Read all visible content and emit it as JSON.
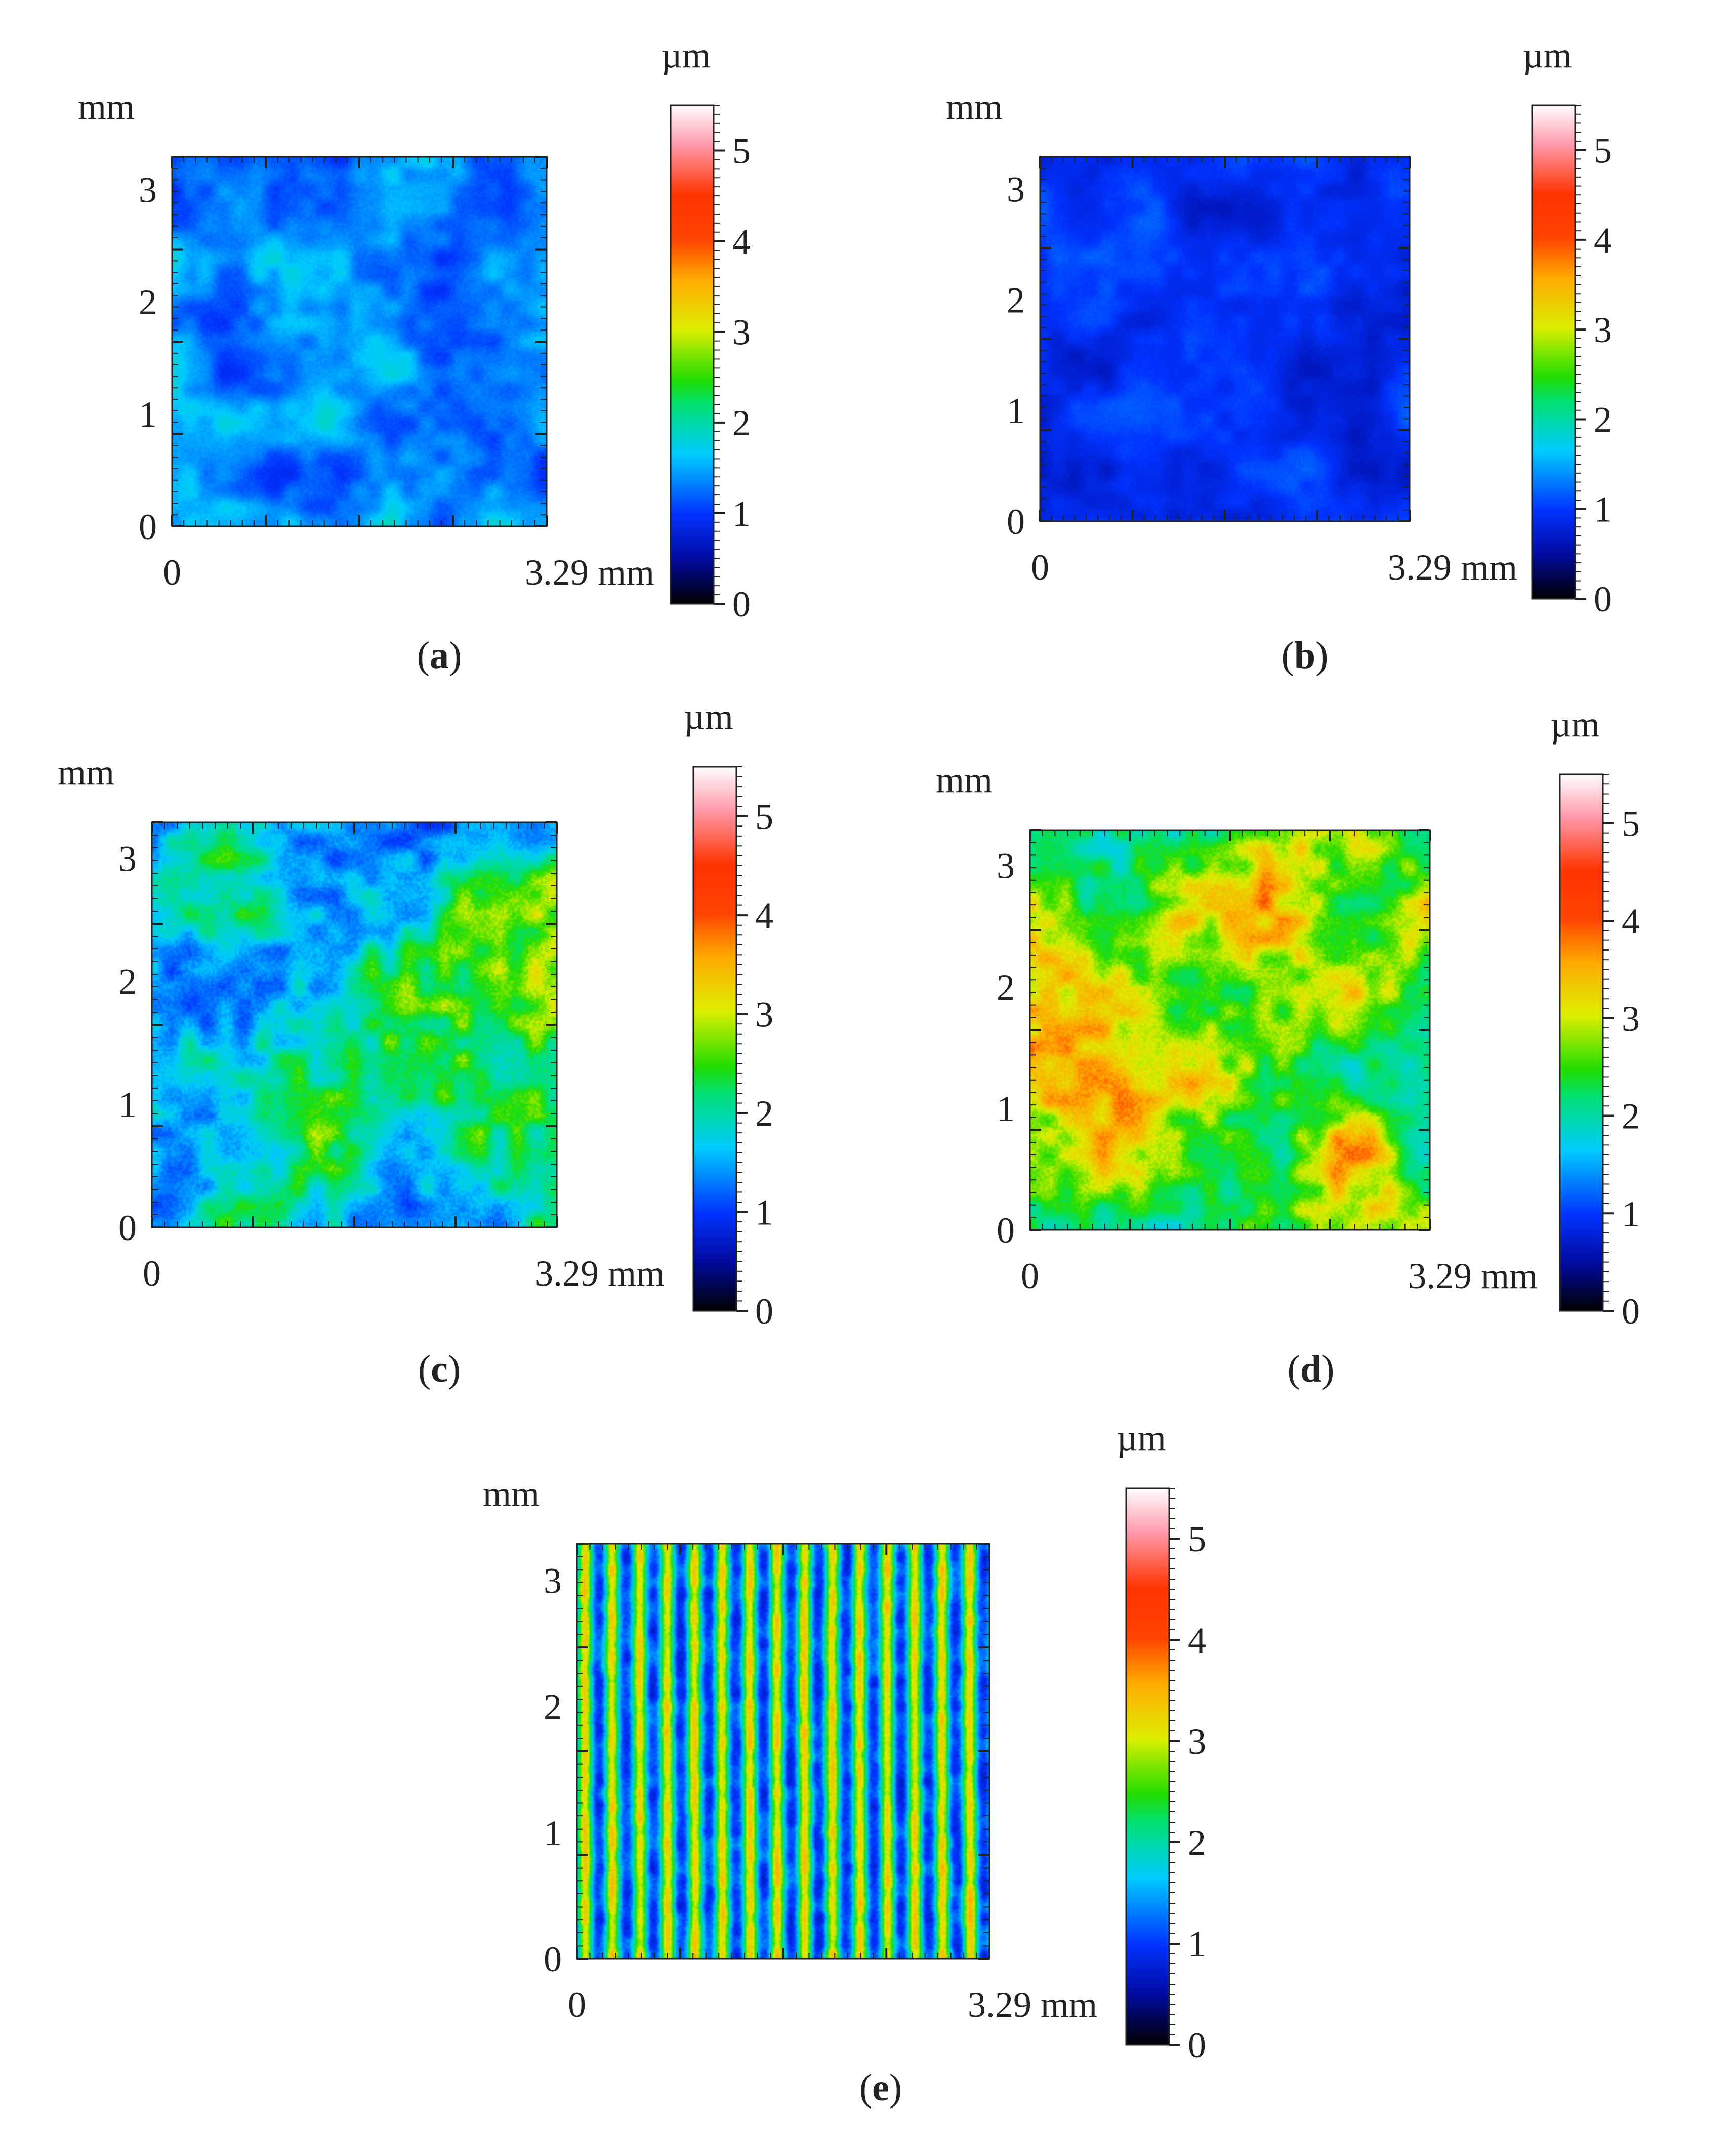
{
  "chart_data": [
    {
      "type": "heatmap",
      "panel_label": "a",
      "ylabel": "mm",
      "x_ticks": [
        "0",
        "3.29 mm"
      ],
      "y_ticks": [
        "0",
        "1",
        "2",
        "3"
      ],
      "xlim": [
        0,
        3.29
      ],
      "ylim": [
        0,
        3.29
      ],
      "z_range_um": [
        0.8,
        2.0
      ],
      "dominant_level_um": 1.3,
      "texture": "mottled"
    },
    {
      "type": "heatmap",
      "panel_label": "b",
      "ylabel": "mm",
      "x_ticks": [
        "0",
        "3.29 mm"
      ],
      "y_ticks": [
        "0",
        "1",
        "2",
        "3"
      ],
      "xlim": [
        0,
        3.29
      ],
      "ylim": [
        0,
        3.29
      ],
      "z_range_um": [
        0.6,
        1.3
      ],
      "dominant_level_um": 0.9,
      "texture": "mottled"
    },
    {
      "type": "heatmap",
      "panel_label": "c",
      "ylabel": "mm",
      "x_ticks": [
        "0",
        "3.29 mm"
      ],
      "y_ticks": [
        "0",
        "1",
        "2",
        "3"
      ],
      "xlim": [
        0,
        3.29
      ],
      "ylim": [
        0,
        3.29
      ],
      "z_range_um": [
        0.8,
        3.6
      ],
      "dominant_level_um": 1.9,
      "texture": "patchy"
    },
    {
      "type": "heatmap",
      "panel_label": "d",
      "ylabel": "mm",
      "x_ticks": [
        "0",
        "3.29 mm"
      ],
      "y_ticks": [
        "0",
        "1",
        "2",
        "3"
      ],
      "xlim": [
        0,
        3.29
      ],
      "ylim": [
        0,
        3.29
      ],
      "z_range_um": [
        1.6,
        4.2
      ],
      "dominant_level_um": 2.8,
      "texture": "patchy"
    },
    {
      "type": "heatmap",
      "panel_label": "e",
      "ylabel": "mm",
      "x_ticks": [
        "0",
        "3.29 mm"
      ],
      "y_ticks": [
        "0",
        "1",
        "2",
        "3"
      ],
      "xlim": [
        0,
        3.29
      ],
      "ylim": [
        0,
        3.29
      ],
      "z_range_um": [
        0.6,
        3.5
      ],
      "dominant_level_um": 2.0,
      "texture": "vertical stripes",
      "stripe_count": 15
    }
  ],
  "colorbar": {
    "unit": "µm",
    "ticks": [
      "0",
      "1",
      "2",
      "3",
      "4",
      "5"
    ],
    "range": [
      0,
      5.5
    ],
    "colors": [
      "#000000",
      "#0000ff",
      "#00ccff",
      "#00dd22",
      "#ffee00",
      "#ff4400",
      "#ffffff"
    ]
  }
}
